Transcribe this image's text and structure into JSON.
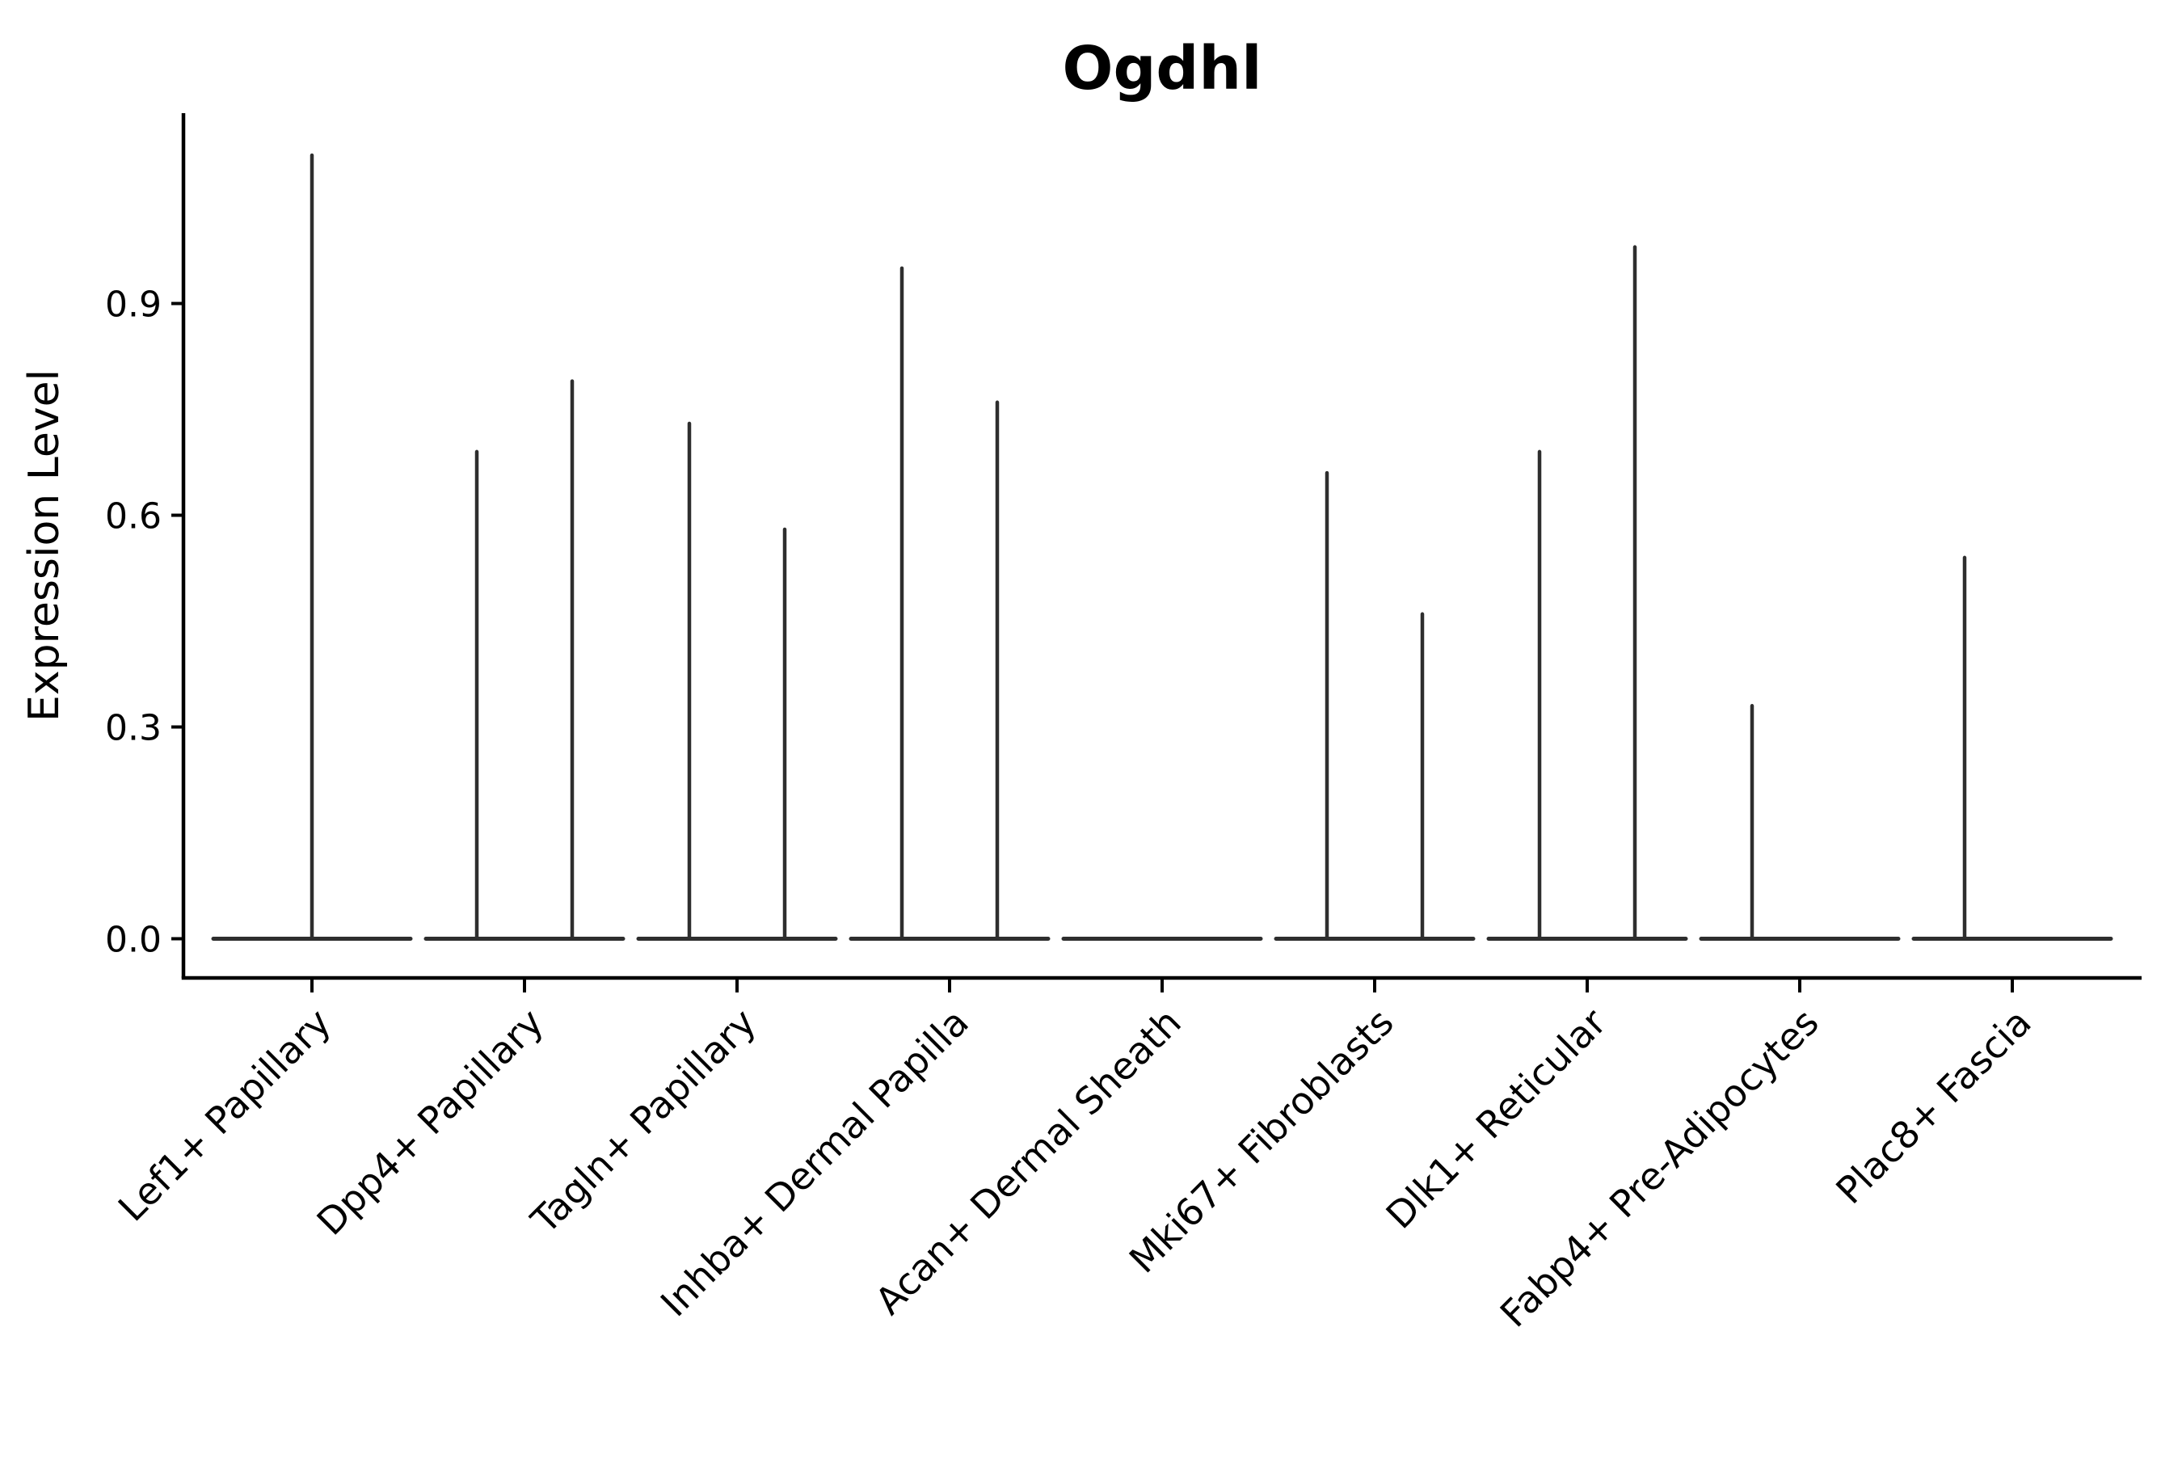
{
  "chart_data": {
    "type": "violin",
    "title": "Ogdhl",
    "xlabel": "",
    "ylabel": "Expression Level",
    "ylim": [
      -0.055,
      1.17
    ],
    "grid": false,
    "legend": "none",
    "yticks": [
      {
        "label": "0.0",
        "value": 0.0
      },
      {
        "label": "0.3",
        "value": 0.3
      },
      {
        "label": "0.6",
        "value": 0.6
      },
      {
        "label": "0.9",
        "value": 0.9
      }
    ],
    "categories": [
      "Lef1+ Papillary",
      "Dpp4+ Papillary",
      "Tagln+ Papillary",
      "Inhba+ Dermal Papilla",
      "Acan+ Dermal Sheath",
      "Mki67+ Fibroblasts",
      "Dlk1+ Reticular",
      "Fabp4+ Pre-Adipocytes",
      "Plac8+ Fascia"
    ],
    "violins": [
      {
        "category": "Lef1+ Papillary",
        "base_value": 0.0,
        "spikes": [
          {
            "pos": "center",
            "max": 1.11
          }
        ]
      },
      {
        "category": "Dpp4+ Papillary",
        "base_value": 0.0,
        "spikes": [
          {
            "pos": "left",
            "max": 0.69
          },
          {
            "pos": "right",
            "max": 0.79
          }
        ]
      },
      {
        "category": "Tagln+ Papillary",
        "base_value": 0.0,
        "spikes": [
          {
            "pos": "left",
            "max": 0.73
          },
          {
            "pos": "right",
            "max": 0.58
          }
        ]
      },
      {
        "category": "Inhba+ Dermal Papilla",
        "base_value": 0.0,
        "spikes": [
          {
            "pos": "left",
            "max": 0.95
          },
          {
            "pos": "right",
            "max": 0.76
          }
        ]
      },
      {
        "category": "Acan+ Dermal Sheath",
        "base_value": 0.0,
        "spikes": []
      },
      {
        "category": "Mki67+ Fibroblasts",
        "base_value": 0.0,
        "spikes": [
          {
            "pos": "left",
            "max": 0.66
          },
          {
            "pos": "right",
            "max": 0.46
          }
        ]
      },
      {
        "category": "Dlk1+ Reticular",
        "base_value": 0.0,
        "spikes": [
          {
            "pos": "left",
            "max": 0.69
          },
          {
            "pos": "right",
            "max": 0.98
          }
        ]
      },
      {
        "category": "Fabp4+ Pre-Adipocytes",
        "base_value": 0.0,
        "spikes": [
          {
            "pos": "left",
            "max": 0.33
          }
        ]
      },
      {
        "category": "Plac8+ Fascia",
        "base_value": 0.0,
        "spikes": [
          {
            "pos": "left",
            "max": 0.54
          }
        ]
      }
    ],
    "colors": {
      "violin": "#2e2e2e",
      "axis": "#000000",
      "text": "#000000",
      "background": "#ffffff"
    }
  }
}
